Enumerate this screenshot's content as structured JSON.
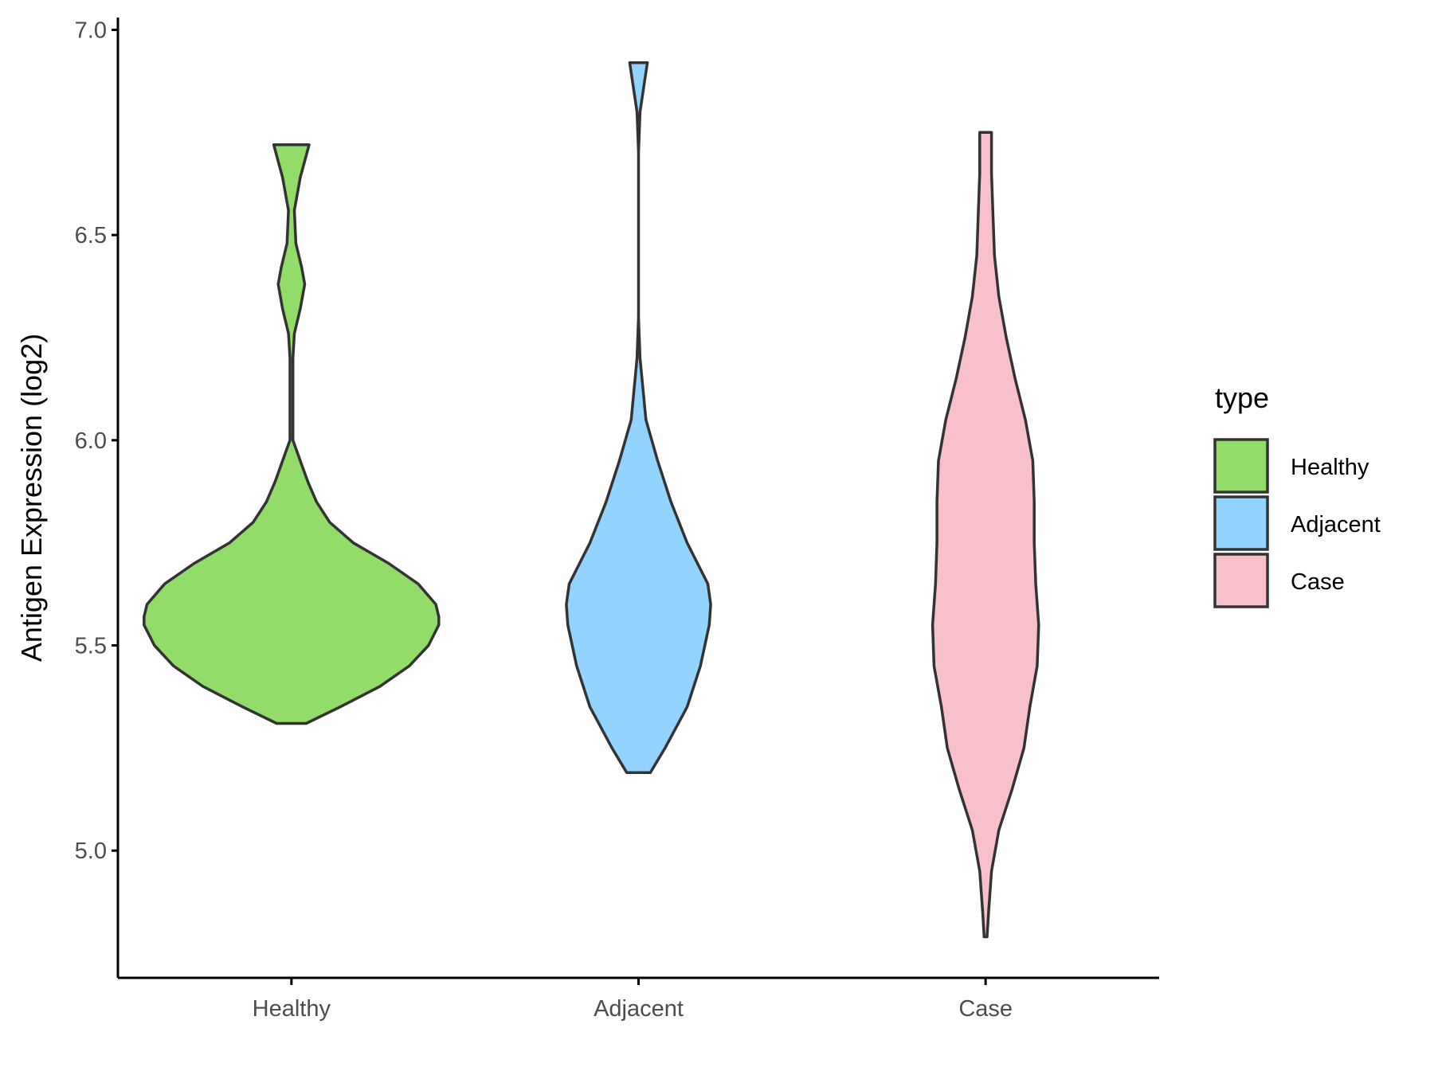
{
  "chart_data": {
    "type": "violin",
    "ylabel": "Antigen Expression (log2)",
    "xlabel": "",
    "ylim": [
      4.69,
      7.03
    ],
    "y_ticks": [
      5.0,
      5.5,
      6.0,
      6.5,
      7.0
    ],
    "y_tick_labels": [
      "5.0",
      "5.5",
      "6.0",
      "6.5",
      "7.0"
    ],
    "categories": [
      "Healthy",
      "Adjacent",
      "Case"
    ],
    "legend": {
      "title": "type",
      "position": "right",
      "entries": [
        "Healthy",
        "Adjacent",
        "Case"
      ]
    },
    "series": [
      {
        "name": "Healthy",
        "color": "#92DC6A",
        "range": [
          5.31,
          6.72
        ],
        "density_profile": [
          [
            5.31,
            0.1
          ],
          [
            5.35,
            0.33
          ],
          [
            5.4,
            0.6
          ],
          [
            5.45,
            0.8
          ],
          [
            5.5,
            0.93
          ],
          [
            5.55,
            1.0
          ],
          [
            5.57,
            1.0
          ],
          [
            5.6,
            0.98
          ],
          [
            5.65,
            0.86
          ],
          [
            5.7,
            0.66
          ],
          [
            5.75,
            0.42
          ],
          [
            5.8,
            0.26
          ],
          [
            5.85,
            0.17
          ],
          [
            5.9,
            0.11
          ],
          [
            5.95,
            0.06
          ],
          [
            6.0,
            0.01
          ],
          [
            6.1,
            0.01
          ],
          [
            6.2,
            0.01
          ],
          [
            6.26,
            0.02
          ],
          [
            6.32,
            0.06
          ],
          [
            6.38,
            0.09
          ],
          [
            6.42,
            0.07
          ],
          [
            6.48,
            0.03
          ],
          [
            6.56,
            0.02
          ],
          [
            6.64,
            0.06
          ],
          [
            6.72,
            0.12
          ]
        ]
      },
      {
        "name": "Adjacent",
        "color": "#92D3FF",
        "range": [
          5.19,
          6.92
        ],
        "density_profile": [
          [
            5.19,
            0.08
          ],
          [
            5.25,
            0.18
          ],
          [
            5.35,
            0.33
          ],
          [
            5.45,
            0.42
          ],
          [
            5.55,
            0.48
          ],
          [
            5.6,
            0.49
          ],
          [
            5.65,
            0.47
          ],
          [
            5.75,
            0.33
          ],
          [
            5.85,
            0.22
          ],
          [
            5.95,
            0.13
          ],
          [
            6.05,
            0.05
          ],
          [
            6.2,
            0.01
          ],
          [
            6.3,
            0.0
          ],
          [
            6.4,
            0.0
          ],
          [
            6.5,
            0.0
          ],
          [
            6.6,
            0.0
          ],
          [
            6.7,
            0.0
          ],
          [
            6.8,
            0.01
          ],
          [
            6.92,
            0.06
          ]
        ]
      },
      {
        "name": "Case",
        "color": "#F7C0CB",
        "range": [
          4.79,
          6.75
        ],
        "density_profile": [
          [
            4.79,
            0.01
          ],
          [
            4.85,
            0.02
          ],
          [
            4.95,
            0.04
          ],
          [
            5.05,
            0.09
          ],
          [
            5.15,
            0.18
          ],
          [
            5.25,
            0.26
          ],
          [
            5.35,
            0.3
          ],
          [
            5.45,
            0.35
          ],
          [
            5.55,
            0.36
          ],
          [
            5.65,
            0.34
          ],
          [
            5.75,
            0.33
          ],
          [
            5.85,
            0.33
          ],
          [
            5.95,
            0.32
          ],
          [
            6.05,
            0.27
          ],
          [
            6.15,
            0.2
          ],
          [
            6.25,
            0.14
          ],
          [
            6.35,
            0.09
          ],
          [
            6.45,
            0.06
          ],
          [
            6.55,
            0.05
          ],
          [
            6.65,
            0.04
          ],
          [
            6.75,
            0.04
          ]
        ]
      }
    ]
  }
}
